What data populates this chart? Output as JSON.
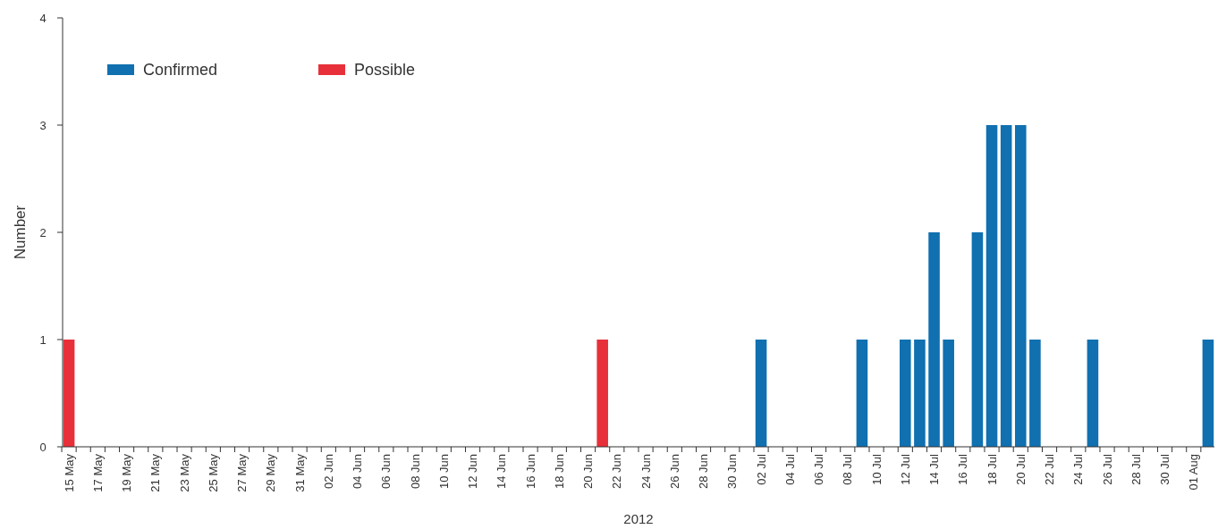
{
  "chart_data": {
    "type": "bar",
    "stacked": true,
    "xlabel": "2012",
    "ylabel": "Number",
    "categories": [
      "15 May",
      null,
      "17 May",
      null,
      "19 May",
      null,
      "21 May",
      null,
      "23 May",
      null,
      "25 May",
      null,
      "27 May",
      null,
      "29 May",
      null,
      "31 May",
      null,
      "02 Jun",
      null,
      "04 Jun",
      null,
      "06 Jun",
      null,
      "08 Jun",
      null,
      "10 Jun",
      null,
      "12 Jun",
      null,
      "14 Jun",
      null,
      "16 Jun",
      null,
      "18 Jun",
      null,
      "20 Jun",
      null,
      "22 Jun",
      null,
      "24 Jun",
      null,
      "26 Jun",
      null,
      "28 Jun",
      null,
      "30 Jun",
      null,
      "02 Jul",
      null,
      "04 Jul",
      null,
      "06 Jul",
      null,
      "08 Jul",
      null,
      "10 Jul",
      null,
      "12 Jul",
      null,
      "14 Jul",
      null,
      "16 Jul",
      null,
      "18 Jul",
      null,
      "20 Jul",
      null,
      "22 Jul",
      null,
      "24 Jul",
      null,
      "26 Jul",
      null,
      "28 Jul",
      null,
      "30 Jul",
      null,
      "01 Aug",
      null
    ],
    "series": [
      {
        "name": "Confirmed",
        "color": "#1070b0",
        "values": [
          0,
          0,
          0,
          0,
          0,
          0,
          0,
          0,
          0,
          0,
          0,
          0,
          0,
          0,
          0,
          0,
          0,
          0,
          0,
          0,
          0,
          0,
          0,
          0,
          0,
          0,
          0,
          0,
          0,
          0,
          0,
          0,
          0,
          0,
          0,
          0,
          0,
          0,
          0,
          0,
          0,
          0,
          0,
          0,
          0,
          0,
          0,
          0,
          1,
          0,
          0,
          0,
          0,
          0,
          0,
          1,
          0,
          0,
          1,
          1,
          2,
          1,
          0,
          2,
          3,
          3,
          3,
          1,
          0,
          0,
          0,
          1,
          0,
          0,
          0,
          0,
          0,
          0,
          0,
          1
        ]
      },
      {
        "name": "Possible",
        "color": "#e8303a",
        "values": [
          1,
          0,
          0,
          0,
          0,
          0,
          0,
          0,
          0,
          0,
          0,
          0,
          0,
          0,
          0,
          0,
          0,
          0,
          0,
          0,
          0,
          0,
          0,
          0,
          0,
          0,
          0,
          0,
          0,
          0,
          0,
          0,
          0,
          0,
          0,
          0,
          0,
          1,
          0,
          0,
          0,
          0,
          0,
          0,
          0,
          0,
          0,
          0,
          0,
          0,
          0,
          0,
          0,
          0,
          0,
          0,
          0,
          0,
          0,
          0,
          0,
          0,
          0,
          0,
          0,
          0,
          0,
          0,
          0,
          0,
          0,
          0,
          0,
          0,
          0,
          0,
          0,
          0,
          0,
          0
        ]
      }
    ],
    "ylim": [
      0,
      4
    ],
    "yticks": [
      0,
      1,
      2,
      3,
      4
    ],
    "grid": false,
    "legend": "top left"
  }
}
